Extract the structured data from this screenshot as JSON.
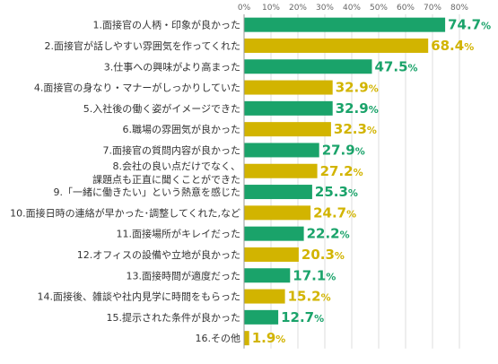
{
  "chart_data": {
    "type": "bar",
    "orientation": "horizontal",
    "xlim": [
      0,
      80
    ],
    "ticks": [
      "0%",
      "10%",
      "20%",
      "30%",
      "40%",
      "50%",
      "60%",
      "70%",
      "80%"
    ],
    "grid": true,
    "colors": {
      "green": "#1aa36a",
      "gold": "#d2b400",
      "axis": "#999999",
      "grid": "#dddddd"
    },
    "categories": [
      [
        "1.面接官の人柄・印象が良かった"
      ],
      [
        "2.面接官が話しやすい雰囲気を作ってくれた"
      ],
      [
        "3.仕事への興味がより高まった"
      ],
      [
        "4.面接官の身なり・マナーがしっかりしていた"
      ],
      [
        "5.入社後の働く姿がイメージできた"
      ],
      [
        "6.職場の雰囲気が良かった"
      ],
      [
        "7.面接官の質問内容が良かった"
      ],
      [
        "8.会社の良い点だけでなく、",
        "課題点も正直に聞くことができた"
      ],
      [
        "9.「一緒に働きたい」という熱意を感じた"
      ],
      [
        "10.面接日時の連絡が早かった･調整してくれた,など"
      ],
      [
        "11.面接場所がキレイだった"
      ],
      [
        "12.オフィスの設備や立地が良かった"
      ],
      [
        "13.面接時間が適度だった"
      ],
      [
        "14.面接後、雑談や社内見学に時間をもらった"
      ],
      [
        "15.提示された条件が良かった"
      ],
      [
        "16.その他"
      ]
    ],
    "values": [
      74.7,
      68.4,
      47.5,
      32.9,
      32.9,
      32.3,
      27.9,
      27.2,
      25.3,
      24.7,
      22.2,
      20.3,
      17.1,
      15.2,
      12.7,
      1.9
    ],
    "value_labels": [
      "74.7",
      "68.4",
      "47.5",
      "32.9",
      "32.9",
      "32.3",
      "27.9",
      "27.2",
      "25.3",
      "24.7",
      "22.2",
      "20.3",
      "17.1",
      "15.2",
      "12.7",
      "1.9"
    ],
    "unit": "%",
    "bar_colors": [
      "green",
      "gold",
      "green",
      "gold",
      "green",
      "gold",
      "green",
      "gold",
      "green",
      "gold",
      "green",
      "gold",
      "green",
      "gold",
      "green",
      "gold"
    ]
  }
}
